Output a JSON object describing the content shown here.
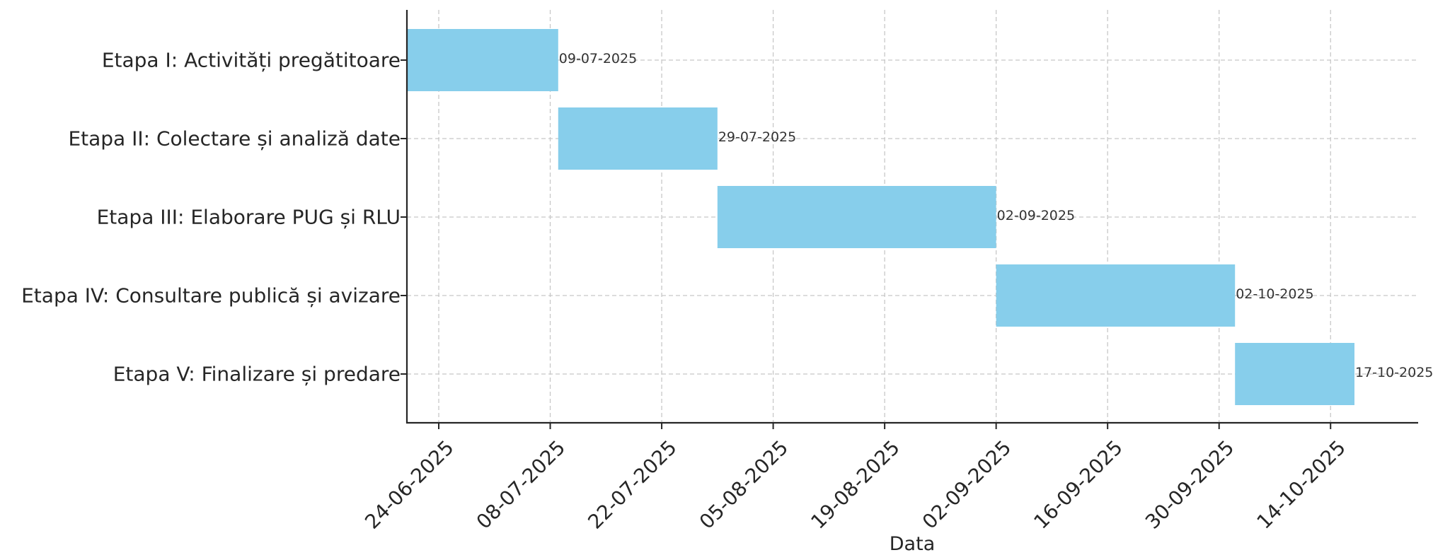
{
  "chart_data": {
    "type": "bar",
    "orientation": "horizontal",
    "subtype": "gantt",
    "title": "",
    "xlabel": "Data",
    "ylabel": "",
    "grid": true,
    "categories": [
      "Etapa I: Activități pregătitoare",
      "Etapa II: Colectare și analiză date",
      "Etapa III: Elaborare PUG și RLU",
      "Etapa IV: Consultare publică și avizare",
      "Etapa V: Finalizare și predare"
    ],
    "tasks": [
      {
        "start": "2025-06-20",
        "end": "2025-07-09",
        "end_label": "09-07-2025"
      },
      {
        "start": "2025-07-09",
        "end": "2025-07-29",
        "end_label": "29-07-2025"
      },
      {
        "start": "2025-07-29",
        "end": "2025-09-02",
        "end_label": "02-09-2025"
      },
      {
        "start": "2025-09-02",
        "end": "2025-10-02",
        "end_label": "02-10-2025"
      },
      {
        "start": "2025-10-02",
        "end": "2025-10-17",
        "end_label": "17-10-2025"
      }
    ],
    "xticks": [
      {
        "date": "2025-06-24",
        "label": "24-06-2025"
      },
      {
        "date": "2025-07-08",
        "label": "08-07-2025"
      },
      {
        "date": "2025-07-22",
        "label": "22-07-2025"
      },
      {
        "date": "2025-08-05",
        "label": "05-08-2025"
      },
      {
        "date": "2025-08-19",
        "label": "19-08-2025"
      },
      {
        "date": "2025-09-02",
        "label": "02-09-2025"
      },
      {
        "date": "2025-09-16",
        "label": "16-09-2025"
      },
      {
        "date": "2025-09-30",
        "label": "30-09-2025"
      },
      {
        "date": "2025-10-14",
        "label": "14-10-2025"
      }
    ],
    "xlim": [
      "2025-06-20",
      "2025-10-25"
    ],
    "colors": {
      "bar": "#87CEEB",
      "grid": "#c8c8c8",
      "axis": "#262626",
      "text": "#262626"
    }
  }
}
